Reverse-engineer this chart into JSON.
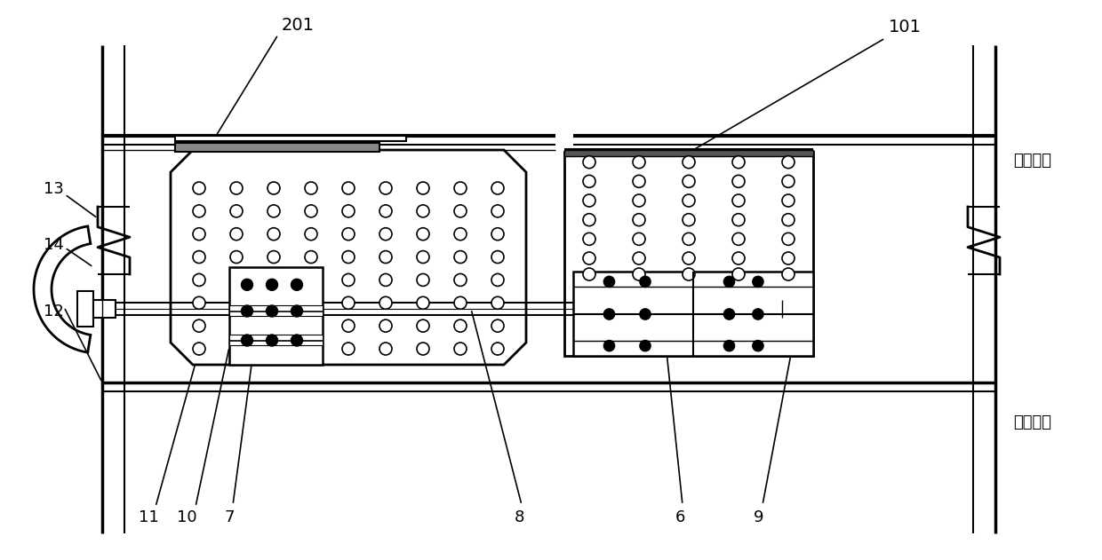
{
  "bg_color": "#ffffff",
  "line_color": "#000000",
  "fig_width": 12.4,
  "fig_height": 6.31,
  "dpi": 100
}
